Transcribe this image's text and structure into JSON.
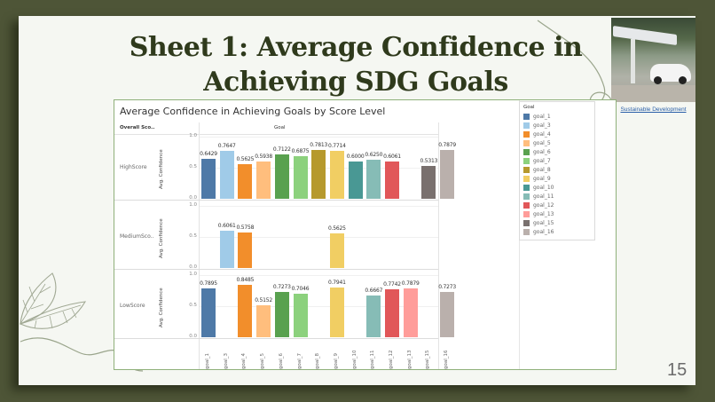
{
  "slide": {
    "title_line1": "Sheet 1: Average Confidence in",
    "title_line2": "Achieving SDG Goals",
    "page_number": "15",
    "image_caption": "Sustainable Development",
    "background_color": "#4e5537",
    "slide_color": "#f5f7f2",
    "title_color": "#2f3a1c"
  },
  "viz": {
    "title": "Average Confidence in Achieving Goals by Score Level",
    "row_header": "Overall Sco..",
    "column_header": "Goal",
    "y_axis_title": "Avg. Confidence",
    "y_ticks": [
      "1.0",
      "0.5",
      "0.0"
    ]
  },
  "legend": {
    "title": "Goal",
    "items": [
      {
        "label": "goal_1",
        "color": "#4e79a7"
      },
      {
        "label": "goal_3",
        "color": "#a0cbe8"
      },
      {
        "label": "goal_4",
        "color": "#f28e2b"
      },
      {
        "label": "goal_5",
        "color": "#ffbe7d"
      },
      {
        "label": "goal_6",
        "color": "#59a14f"
      },
      {
        "label": "goal_7",
        "color": "#8cd17d"
      },
      {
        "label": "goal_8",
        "color": "#b6992d"
      },
      {
        "label": "goal_9",
        "color": "#f1ce63"
      },
      {
        "label": "goal_10",
        "color": "#499894"
      },
      {
        "label": "goal_11",
        "color": "#86bcb6"
      },
      {
        "label": "goal_12",
        "color": "#e15759"
      },
      {
        "label": "goal_13",
        "color": "#ff9d9a"
      },
      {
        "label": "goal_15",
        "color": "#79706e"
      },
      {
        "label": "goal_16",
        "color": "#bab0ac"
      }
    ]
  },
  "chart_data": {
    "type": "bar",
    "title": "Average Confidence in Achieving Goals by Score Level",
    "xlabel": "Goal",
    "ylabel": "Avg. Confidence",
    "ylim": [
      0,
      1.0
    ],
    "categories": [
      "goal_1",
      "goal_3",
      "goal_4",
      "goal_5",
      "goal_6",
      "goal_7",
      "goal_8",
      "goal_9",
      "goal_10",
      "goal_11",
      "goal_12",
      "goal_13",
      "goal_15",
      "goal_16"
    ],
    "series": [
      {
        "name": "HighScore",
        "values": [
          0.6429,
          0.7647,
          0.5625,
          0.5938,
          0.7122,
          0.6875,
          0.7813,
          0.7714,
          0.6,
          0.625,
          0.6061,
          null,
          0.5313,
          0.7879
        ]
      },
      {
        "name": "MediumScore",
        "values": [
          null,
          0.6061,
          0.5758,
          null,
          null,
          null,
          null,
          0.5625,
          null,
          null,
          null,
          null,
          null,
          null
        ]
      },
      {
        "name": "LowScore",
        "values": [
          0.7895,
          null,
          0.8485,
          0.5152,
          0.7273,
          0.7046,
          null,
          0.7941,
          null,
          0.6667,
          0.7742,
          0.7879,
          null,
          0.7273
        ]
      }
    ],
    "row_labels": [
      "HighScore",
      "MediumSco..",
      "LowScore"
    ],
    "legend_position": "right",
    "grid": true
  }
}
